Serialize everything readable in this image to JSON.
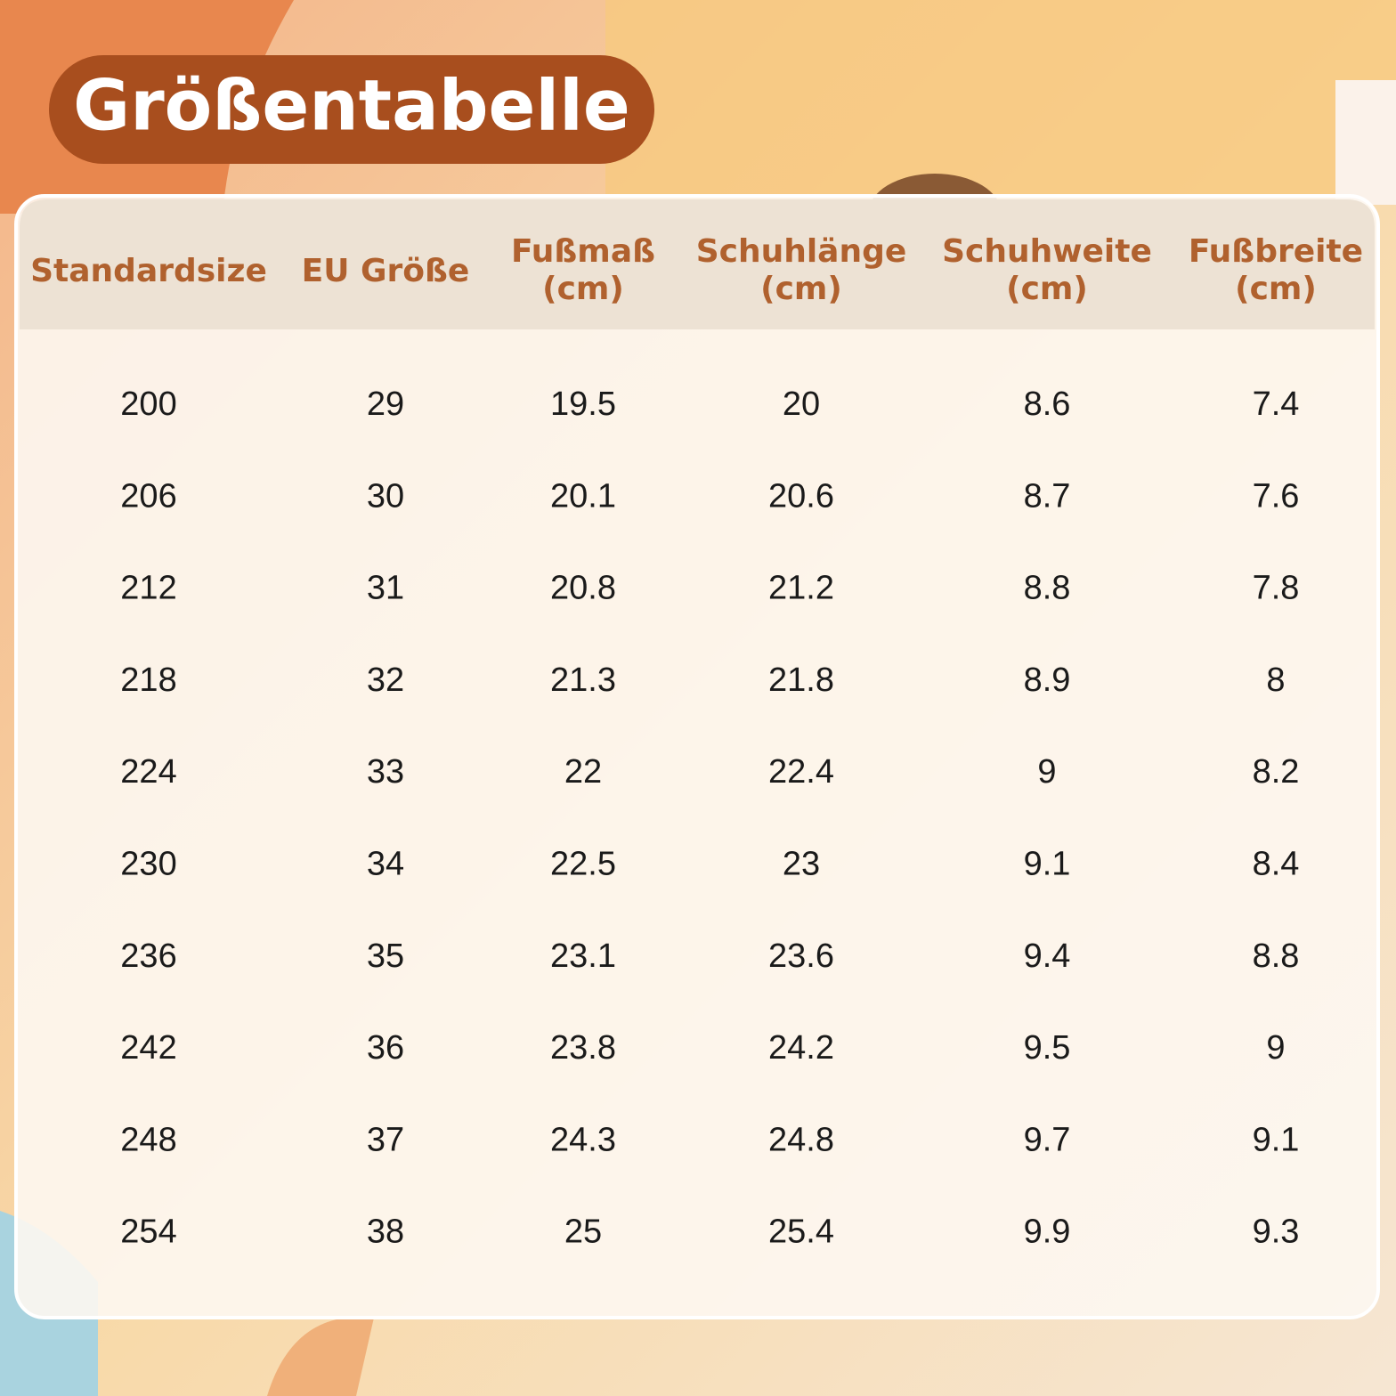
{
  "header": {
    "title": "Größentabelle"
  },
  "table": {
    "columns": [
      [
        "Standardsize"
      ],
      [
        "EU Größe"
      ],
      [
        "Fußmaß",
        "(cm)"
      ],
      [
        "Schuhlänge",
        "(cm)"
      ],
      [
        "Schuhweite",
        "(cm)"
      ],
      [
        "Fußbreite",
        "(cm)"
      ]
    ],
    "rows": [
      [
        "200",
        "29",
        "19.5",
        "20",
        "8.6",
        "7.4"
      ],
      [
        "206",
        "30",
        "20.1",
        "20.6",
        "8.7",
        "7.6"
      ],
      [
        "212",
        "31",
        "20.8",
        "21.2",
        "8.8",
        "7.8"
      ],
      [
        "218",
        "32",
        "21.3",
        "21.8",
        "8.9",
        "8"
      ],
      [
        "224",
        "33",
        "22",
        "22.4",
        "9",
        "8.2"
      ],
      [
        "230",
        "34",
        "22.5",
        "23",
        "9.1",
        "8.4"
      ],
      [
        "236",
        "35",
        "23.1",
        "23.6",
        "9.4",
        "8.8"
      ],
      [
        "242",
        "36",
        "23.8",
        "24.2",
        "9.5",
        "9"
      ],
      [
        "248",
        "37",
        "24.3",
        "24.8",
        "9.7",
        "9.1"
      ],
      [
        "254",
        "38",
        "25",
        "25.4",
        "9.9",
        "9.3"
      ]
    ]
  }
}
